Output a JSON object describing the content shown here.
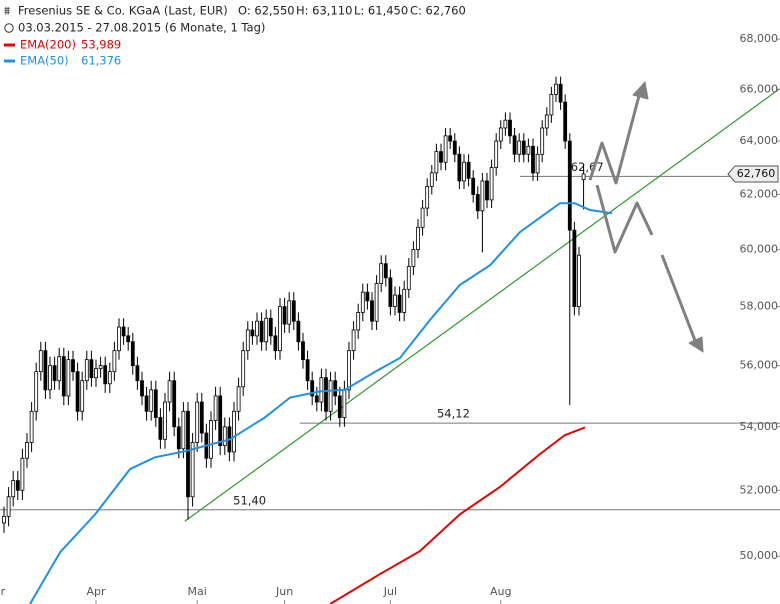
{
  "chart_data": {
    "type": "candlestick",
    "title": "Fresenius SE & Co. KGaA (Last, EUR)",
    "ohlc_labels": [
      "O: 62,550",
      "H: 63,110",
      "L: 61,450",
      "C: 62,760"
    ],
    "subtitle": "03.03.2015 - 27.08.2015 (6 Monate, 1 Tag)",
    "log_scale": true,
    "ylim": [
      48.6,
      69.6
    ],
    "yticks": [
      {
        "value": 50,
        "label": "50,000"
      },
      {
        "value": 52,
        "label": "52,000"
      },
      {
        "value": 54,
        "label": "54,000"
      },
      {
        "value": 56,
        "label": "56,000"
      },
      {
        "value": 58,
        "label": "58,000"
      },
      {
        "value": 60,
        "label": "60,000"
      },
      {
        "value": 62,
        "label": "62,000"
      },
      {
        "value": 64,
        "label": "64,000"
      },
      {
        "value": 66,
        "label": "66,000"
      },
      {
        "value": 68,
        "label": "68,000"
      }
    ],
    "xlim": [
      -0.87,
      168.7
    ],
    "xticks": [
      {
        "value": -2,
        "label": "Mar"
      },
      {
        "value": 20,
        "label": "Apr"
      },
      {
        "value": 42,
        "label": "Mai"
      },
      {
        "value": 61,
        "label": "Jun"
      },
      {
        "value": 84,
        "label": "Jul"
      },
      {
        "value": 108,
        "label": "Aug"
      }
    ],
    "up_color": "#ffffff",
    "down_color": "#000000",
    "candles": {
      "open": [
        51.0,
        51.2,
        51.8,
        52.3,
        52.0,
        53.0,
        53.5,
        54.5,
        55.8,
        56.5,
        55.2,
        56.0,
        55.5,
        56.3,
        55.0,
        56.2,
        55.8,
        54.5,
        55.5,
        56.2,
        55.6,
        55.9,
        56.0,
        55.4,
        55.8,
        56.5,
        57.3,
        57.0,
        56.8,
        56.0,
        55.5,
        55.0,
        54.5,
        55.2,
        54.3,
        53.6,
        54.8,
        55.5,
        54.0,
        53.3,
        54.5,
        51.8,
        53.5,
        54.8,
        53.8,
        53.0,
        54.2,
        55.0,
        53.4,
        54.0,
        53.2,
        54.5,
        55.3,
        56.5,
        57.2,
        57.0,
        57.5,
        56.8,
        57.6,
        57.0,
        56.5,
        58.0,
        57.4,
        58.2,
        57.5,
        56.8,
        56.2,
        55.5,
        55.0,
        54.8,
        55.6,
        54.5,
        55.5,
        55.0,
        54.3,
        55.2,
        56.5,
        57.2,
        57.8,
        58.5,
        58.2,
        57.5,
        58.8,
        59.5,
        59.0,
        58.0,
        58.4,
        57.8,
        58.6,
        59.4,
        60.0,
        60.8,
        61.5,
        62.3,
        62.8,
        63.6,
        63.2,
        64.2,
        64.0,
        63.5,
        62.5,
        63.2,
        62.6,
        62.0,
        61.4,
        62.5,
        61.8,
        63.0,
        64.0,
        64.5,
        64.8,
        64.2,
        63.5,
        64.0,
        63.5,
        63.8,
        62.8,
        63.5,
        64.5,
        65.0,
        65.8,
        66.2,
        65.5,
        64.0,
        60.7,
        58.0,
        62.55
      ],
      "high": [
        51.5,
        52.1,
        52.6,
        52.6,
        53.3,
        53.8,
        54.8,
        56.1,
        56.8,
        56.8,
        56.3,
        56.3,
        56.6,
        56.6,
        56.5,
        56.5,
        56.1,
        55.8,
        56.5,
        56.5,
        56.2,
        56.3,
        56.3,
        56.1,
        56.8,
        57.6,
        57.6,
        57.3,
        57.1,
        56.3,
        55.8,
        55.3,
        55.5,
        55.5,
        54.6,
        55.1,
        55.8,
        55.8,
        54.3,
        54.8,
        54.8,
        53.8,
        55.1,
        55.1,
        54.1,
        54.5,
        55.3,
        55.3,
        54.3,
        54.3,
        54.8,
        55.6,
        56.8,
        57.5,
        57.5,
        57.8,
        57.8,
        57.9,
        57.9,
        57.3,
        58.3,
        58.3,
        58.5,
        58.5,
        57.8,
        57.1,
        56.5,
        55.8,
        55.3,
        55.9,
        55.9,
        55.8,
        55.8,
        55.3,
        55.5,
        56.8,
        57.5,
        58.1,
        58.8,
        58.8,
        58.5,
        59.1,
        59.8,
        59.8,
        59.3,
        58.7,
        58.7,
        58.9,
        59.7,
        60.3,
        61.1,
        61.8,
        62.6,
        63.1,
        63.9,
        63.9,
        64.5,
        64.5,
        64.3,
        63.8,
        63.5,
        63.5,
        62.9,
        62.3,
        62.8,
        62.8,
        63.3,
        64.3,
        64.8,
        65.1,
        65.1,
        64.5,
        64.3,
        64.3,
        64.1,
        64.1,
        63.8,
        64.8,
        65.3,
        66.1,
        66.5,
        66.5,
        65.8,
        64.3,
        61.0,
        60.1,
        63.11
      ],
      "low": [
        50.7,
        50.9,
        51.5,
        51.7,
        51.7,
        52.7,
        53.2,
        54.2,
        55.5,
        54.9,
        54.9,
        55.2,
        55.2,
        54.7,
        54.7,
        55.5,
        54.2,
        54.2,
        55.2,
        55.3,
        55.3,
        55.6,
        55.1,
        55.1,
        55.5,
        56.2,
        56.7,
        56.5,
        55.7,
        55.2,
        54.7,
        54.2,
        54.2,
        54.0,
        53.3,
        53.3,
        54.5,
        53.7,
        53.0,
        53.0,
        51.1,
        51.5,
        53.2,
        53.5,
        52.7,
        52.7,
        53.9,
        53.1,
        53.1,
        52.9,
        52.9,
        54.2,
        55.0,
        56.2,
        56.7,
        56.7,
        56.5,
        56.5,
        56.7,
        56.2,
        56.2,
        57.1,
        57.1,
        57.2,
        56.5,
        55.9,
        55.2,
        54.7,
        54.5,
        54.5,
        54.2,
        54.2,
        54.7,
        54.0,
        54.0,
        54.9,
        56.2,
        56.9,
        57.5,
        57.9,
        57.2,
        57.2,
        58.5,
        58.7,
        57.7,
        57.7,
        57.5,
        57.5,
        58.3,
        59.1,
        59.7,
        60.5,
        61.2,
        62.0,
        62.5,
        62.9,
        62.9,
        63.7,
        63.2,
        62.2,
        62.2,
        62.3,
        61.7,
        61.1,
        59.9,
        61.5,
        61.5,
        62.7,
        63.7,
        64.2,
        63.9,
        63.2,
        63.2,
        63.2,
        63.2,
        62.5,
        62.5,
        63.2,
        64.2,
        64.7,
        65.5,
        65.2,
        63.7,
        54.7,
        57.7,
        57.7,
        61.45
      ],
      "close": [
        51.2,
        51.8,
        52.3,
        52.0,
        53.0,
        53.5,
        54.5,
        55.8,
        56.5,
        55.2,
        56.0,
        55.5,
        56.3,
        55.0,
        56.2,
        55.8,
        54.5,
        55.5,
        56.2,
        55.6,
        55.9,
        56.0,
        55.4,
        55.8,
        56.5,
        57.3,
        57.0,
        56.8,
        56.0,
        55.5,
        55.0,
        54.5,
        55.2,
        54.3,
        53.6,
        54.8,
        55.5,
        54.0,
        53.3,
        54.5,
        51.8,
        53.5,
        54.8,
        53.8,
        53.0,
        54.2,
        55.0,
        53.4,
        54.0,
        53.2,
        54.5,
        55.3,
        56.5,
        57.2,
        57.0,
        57.5,
        56.8,
        57.6,
        57.0,
        56.5,
        58.0,
        57.4,
        58.2,
        57.5,
        56.8,
        56.2,
        55.5,
        55.0,
        54.8,
        55.6,
        54.5,
        55.5,
        55.0,
        54.3,
        55.2,
        56.5,
        57.2,
        57.8,
        58.5,
        58.2,
        57.5,
        58.8,
        59.5,
        59.0,
        58.0,
        58.4,
        57.8,
        58.6,
        59.4,
        60.0,
        60.8,
        61.5,
        62.3,
        62.8,
        63.6,
        63.2,
        64.2,
        64.0,
        63.5,
        62.5,
        63.2,
        62.6,
        62.0,
        61.4,
        62.5,
        61.8,
        63.0,
        64.0,
        64.5,
        64.8,
        64.2,
        63.5,
        64.0,
        63.5,
        63.8,
        62.8,
        63.5,
        64.5,
        65.0,
        65.8,
        66.2,
        65.5,
        64.0,
        60.7,
        58.0,
        59.8,
        62.76
      ]
    },
    "series": [
      {
        "name": "EMA(200)",
        "last_value_label": "53,989",
        "color": "#e60000",
        "x": [
          70.9,
          81.7,
          90.4,
          99.1,
          107.8,
          116.5,
          121.9,
          126.3
        ],
        "values": [
          48.6,
          49.47,
          50.15,
          51.26,
          52.1,
          53.13,
          53.73,
          53.98
        ]
      },
      {
        "name": "EMA(50)",
        "last_value_label": "61,376",
        "color": "#1e90e8",
        "x": [
          5.65,
          12.2,
          19.8,
          27.4,
          32.8,
          39.3,
          49.1,
          56.7,
          62.2,
          68.7,
          74.1,
          80.7,
          86.1,
          92.6,
          99.1,
          105.7,
          112.2,
          117.6,
          120.9,
          124.1,
          127.4,
          132.2
        ],
        "values": [
          48.6,
          50.12,
          51.26,
          52.66,
          53.03,
          53.22,
          53.6,
          54.3,
          54.95,
          55.15,
          55.2,
          55.8,
          56.26,
          57.54,
          58.75,
          59.45,
          60.63,
          61.28,
          61.68,
          61.68,
          61.43,
          61.31
        ]
      }
    ],
    "trendline": {
      "color": "#2e9a2e",
      "x": [
        39.3,
        168.7
      ],
      "values": [
        51.05,
        66.03
      ]
    },
    "levels": [
      {
        "value": 51.4,
        "label": "51,40",
        "x": [
          -0.87,
          168.7
        ]
      },
      {
        "value": 54.12,
        "label": "54,12",
        "x": [
          64.3,
          168.7
        ]
      },
      {
        "value": 62.67,
        "label": "62,67",
        "x": [
          112.2,
          157.8
        ]
      }
    ],
    "price_marker": {
      "value": 62.76,
      "label": "62,760"
    }
  }
}
